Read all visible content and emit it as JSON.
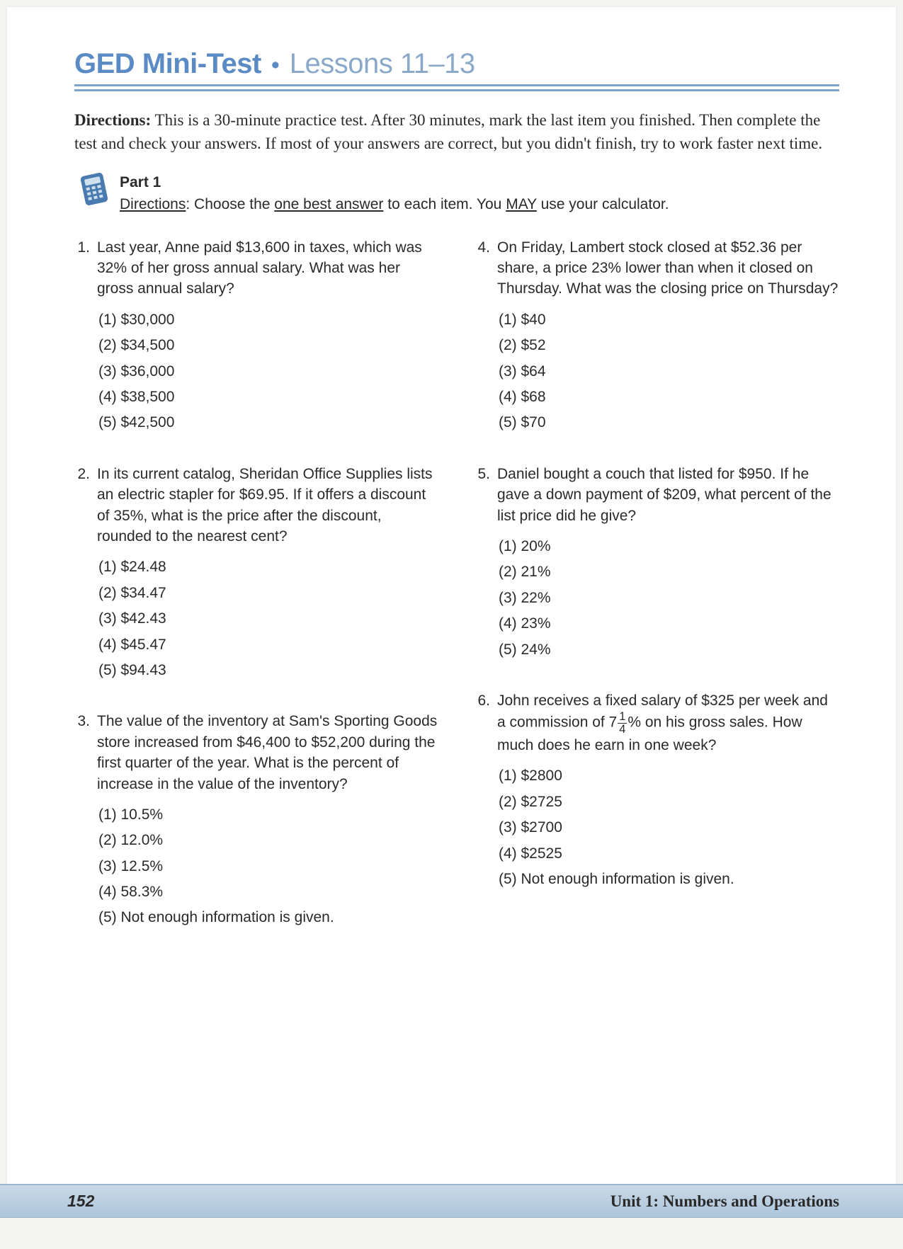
{
  "header": {
    "title_bold": "GED Mini-Test",
    "title_light": "Lessons 11–13"
  },
  "directions": {
    "label": "Directions:",
    "text": "This is a 30-minute practice test. After 30 minutes, mark the last item you finished. Then complete the test and check your answers. If most of your answers are correct, but you didn't finish, try to work faster next time."
  },
  "part": {
    "label": "Part 1",
    "dir_label": "Directions",
    "one_best": "one best answer",
    "may": "MAY",
    "before": ": Choose the ",
    "mid": " to each item. You ",
    "after": " use your calculator."
  },
  "questions_left": [
    {
      "num": "1.",
      "text": "Last year, Anne paid $13,600 in taxes, which was 32% of her gross annual salary. What was her gross annual salary?",
      "choices": [
        "(1) $30,000",
        "(2) $34,500",
        "(3) $36,000",
        "(4) $38,500",
        "(5) $42,500"
      ]
    },
    {
      "num": "2.",
      "text": "In its current catalog, Sheridan Office Supplies lists an electric stapler for $69.95. If it offers a discount of 35%, what is the price after the discount, rounded to the nearest cent?",
      "choices": [
        "(1) $24.48",
        "(2) $34.47",
        "(3) $42.43",
        "(4) $45.47",
        "(5) $94.43"
      ]
    },
    {
      "num": "3.",
      "text": "The value of the inventory at Sam's Sporting Goods store increased from $46,400 to $52,200 during the first quarter of the year. What is the percent of increase in the value of the inventory?",
      "choices": [
        "(1) 10.5%",
        "(2) 12.0%",
        "(3) 12.5%",
        "(4) 58.3%",
        "(5) Not enough information is given."
      ]
    }
  ],
  "questions_right": [
    {
      "num": "4.",
      "text": "On Friday, Lambert stock closed at $52.36 per share, a price 23% lower than when it closed on Thursday. What was the closing price on Thursday?",
      "choices": [
        "(1) $40",
        "(2) $52",
        "(3) $64",
        "(4) $68",
        "(5) $70"
      ]
    },
    {
      "num": "5.",
      "text": "Daniel bought a couch that listed for $950. If he gave a down payment of $209, what percent of the list price did he give?",
      "choices": [
        "(1) 20%",
        "(2) 21%",
        "(3) 22%",
        "(4) 23%",
        "(5) 24%"
      ]
    },
    {
      "num": "6.",
      "text_pre": "John receives a fixed salary of $325 per week and a commission of 7",
      "frac_n": "1",
      "frac_d": "4",
      "text_post": "% on his gross sales. How much does he earn in one week?",
      "choices": [
        "(1) $2800",
        "(2) $2725",
        "(3) $2700",
        "(4) $2525",
        "(5) Not enough information is given."
      ]
    }
  ],
  "footer": {
    "page": "152",
    "unit": "Unit 1: Numbers and Operations"
  },
  "colors": {
    "title": "#5a8bc4",
    "title_light": "#8aa8c8",
    "rule": "#7ba3cc",
    "text": "#2a2a2a",
    "footer_bg_top": "#c8d8e6",
    "footer_bg_bot": "#aec6dc"
  }
}
